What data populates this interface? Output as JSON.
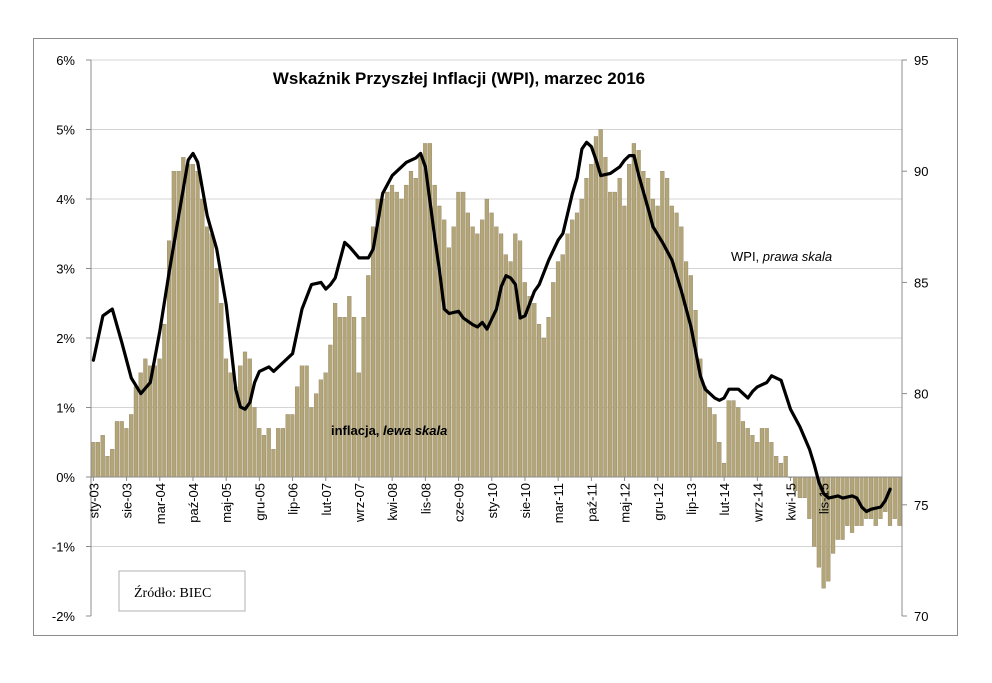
{
  "chart_data": {
    "type": "bar+line",
    "title": "Wskaźnik Przyszłej Inflacji (WPI), marzec 2016",
    "source": "Źródło: BIEC",
    "x_tick_labels": [
      "sty-03",
      "sie-03",
      "mar-04",
      "paź-04",
      "maj-05",
      "gru-05",
      "lip-06",
      "lut-07",
      "wrz-07",
      "kwi-08",
      "lis-08",
      "cze-09",
      "sty-10",
      "sie-10",
      "mar-11",
      "paź-11",
      "maj-12",
      "gru-12",
      "lip-13",
      "lut-14",
      "wrz-14",
      "kwi-15",
      "lis-15"
    ],
    "y_left": {
      "ticks": [
        "6%",
        "5%",
        "4%",
        "3%",
        "2%",
        "1%",
        "0%",
        "-1%",
        "-2%"
      ],
      "range": [
        -2,
        6
      ],
      "unit": "%"
    },
    "y_right": {
      "ticks": [
        "95",
        "90",
        "85",
        "80",
        "75",
        "70"
      ],
      "range": [
        70,
        95
      ]
    },
    "series": [
      {
        "name": "inflacja, lewa skala",
        "label_main": "inflacja, ",
        "label_italic": "lewa skala",
        "kind": "bar",
        "axis": "left",
        "color": "#b3a577",
        "values": [
          0.5,
          0.5,
          0.6,
          0.3,
          0.4,
          0.8,
          0.8,
          0.7,
          0.9,
          1.3,
          1.5,
          1.7,
          1.6,
          1.6,
          1.7,
          2.2,
          3.4,
          4.4,
          4.4,
          4.6,
          4.5,
          4.5,
          4.4,
          4.0,
          3.6,
          3.5,
          3.0,
          2.5,
          1.7,
          1.5,
          1.3,
          1.6,
          1.8,
          1.7,
          1.0,
          0.7,
          0.6,
          0.7,
          0.4,
          0.7,
          0.7,
          0.9,
          0.9,
          1.3,
          1.6,
          1.6,
          1.0,
          1.2,
          1.4,
          1.5,
          1.9,
          2.5,
          2.3,
          2.3,
          2.6,
          2.3,
          1.5,
          2.3,
          2.9,
          3.6,
          4.0,
          4.0,
          4.1,
          4.2,
          4.1,
          4.0,
          4.2,
          4.4,
          4.3,
          4.6,
          4.8,
          4.8,
          4.2,
          3.9,
          3.7,
          3.3,
          3.6,
          4.1,
          4.1,
          3.8,
          3.6,
          3.5,
          3.7,
          4.0,
          3.8,
          3.6,
          3.5,
          3.2,
          3.1,
          3.5,
          3.4,
          2.8,
          2.6,
          2.5,
          2.2,
          2.0,
          2.3,
          2.8,
          3.1,
          3.2,
          3.5,
          3.7,
          3.8,
          4.0,
          4.3,
          4.5,
          4.9,
          5.0,
          4.6,
          4.1,
          4.1,
          4.3,
          3.9,
          4.5,
          4.8,
          4.7,
          4.4,
          4.3,
          4.0,
          3.9,
          4.4,
          4.3,
          3.9,
          3.8,
          3.6,
          3.1,
          2.9,
          2.4,
          1.7,
          1.3,
          1.0,
          0.9,
          0.5,
          0.2,
          1.1,
          1.1,
          1.0,
          0.8,
          0.7,
          0.6,
          0.5,
          0.7,
          0.7,
          0.5,
          0.3,
          0.2,
          0.3,
          0.0,
          -0.2,
          -0.3,
          -0.3,
          -0.6,
          -1.0,
          -1.3,
          -1.6,
          -1.5,
          -1.1,
          -0.9,
          -0.9,
          -0.7,
          -0.8,
          -0.7,
          -0.7,
          -0.6,
          -0.6,
          -0.7,
          -0.6,
          -0.5,
          -0.7,
          -0.6,
          -0.7
        ]
      },
      {
        "name": "WPI, prawa skala",
        "label_main": "WPI, ",
        "label_italic": "prawa skala",
        "kind": "line",
        "axis": "right",
        "color": "#000000",
        "points": [
          [
            0,
            81.5
          ],
          [
            2,
            83.5
          ],
          [
            4,
            83.8
          ],
          [
            6,
            82.3
          ],
          [
            8,
            80.7
          ],
          [
            10,
            80.0
          ],
          [
            12,
            80.5
          ],
          [
            14,
            82.8
          ],
          [
            16,
            85.5
          ],
          [
            18,
            88.0
          ],
          [
            20,
            90.5
          ],
          [
            21,
            90.8
          ],
          [
            22,
            90.4
          ],
          [
            24,
            88.0
          ],
          [
            26,
            86.5
          ],
          [
            28,
            84.0
          ],
          [
            30,
            80.2
          ],
          [
            31,
            79.4
          ],
          [
            32,
            79.3
          ],
          [
            33,
            79.6
          ],
          [
            34,
            80.5
          ],
          [
            35,
            81.0
          ],
          [
            37,
            81.2
          ],
          [
            38,
            81.0
          ],
          [
            40,
            81.4
          ],
          [
            42,
            81.8
          ],
          [
            44,
            83.8
          ],
          [
            46,
            84.9
          ],
          [
            48,
            85.0
          ],
          [
            49,
            84.7
          ],
          [
            50,
            84.9
          ],
          [
            51,
            85.2
          ],
          [
            53,
            86.8
          ],
          [
            54,
            86.6
          ],
          [
            56,
            86.1
          ],
          [
            58,
            86.1
          ],
          [
            59,
            86.5
          ],
          [
            61,
            89.0
          ],
          [
            63,
            89.8
          ],
          [
            64,
            90.0
          ],
          [
            66,
            90.4
          ],
          [
            68,
            90.6
          ],
          [
            69,
            90.8
          ],
          [
            70,
            90.2
          ],
          [
            72,
            87.0
          ],
          [
            73,
            85.5
          ],
          [
            74,
            83.8
          ],
          [
            75,
            83.6
          ],
          [
            77,
            83.7
          ],
          [
            78,
            83.4
          ],
          [
            80,
            83.1
          ],
          [
            81,
            83.0
          ],
          [
            82,
            83.2
          ],
          [
            83,
            82.9
          ],
          [
            85,
            83.8
          ],
          [
            86,
            84.8
          ],
          [
            87,
            85.3
          ],
          [
            88,
            85.2
          ],
          [
            89,
            84.9
          ],
          [
            90,
            83.4
          ],
          [
            91,
            83.5
          ],
          [
            93,
            84.6
          ],
          [
            94,
            84.9
          ],
          [
            96,
            86.0
          ],
          [
            98,
            86.9
          ],
          [
            99,
            87.2
          ],
          [
            101,
            89.0
          ],
          [
            102,
            89.7
          ],
          [
            103,
            91.0
          ],
          [
            104,
            91.3
          ],
          [
            105,
            91.1
          ],
          [
            106,
            90.5
          ],
          [
            107,
            89.8
          ],
          [
            109,
            89.9
          ],
          [
            111,
            90.2
          ],
          [
            112,
            90.5
          ],
          [
            113,
            90.7
          ],
          [
            114,
            90.7
          ],
          [
            115,
            89.8
          ],
          [
            117,
            88.3
          ],
          [
            118,
            87.5
          ],
          [
            120,
            86.8
          ],
          [
            122,
            86.0
          ],
          [
            124,
            84.6
          ],
          [
            126,
            83.0
          ],
          [
            128,
            80.8
          ],
          [
            129,
            80.2
          ],
          [
            131,
            79.8
          ],
          [
            132,
            79.7
          ],
          [
            133,
            79.8
          ],
          [
            134,
            80.2
          ],
          [
            136,
            80.2
          ],
          [
            137,
            80.0
          ],
          [
            138,
            79.8
          ],
          [
            139,
            80.1
          ],
          [
            140,
            80.3
          ],
          [
            142,
            80.5
          ],
          [
            143,
            80.8
          ],
          [
            145,
            80.6
          ],
          [
            147,
            79.3
          ],
          [
            149,
            78.5
          ],
          [
            151,
            77.5
          ],
          [
            152,
            76.8
          ],
          [
            153,
            76.0
          ],
          [
            154,
            75.5
          ],
          [
            155,
            75.3
          ],
          [
            157,
            75.4
          ],
          [
            158,
            75.3
          ],
          [
            160,
            75.4
          ],
          [
            161,
            75.3
          ],
          [
            162,
            74.9
          ],
          [
            163,
            74.7
          ],
          [
            164,
            74.8
          ],
          [
            166,
            74.9
          ],
          [
            167,
            75.2
          ],
          [
            168,
            75.7
          ]
        ],
        "annotation": "WPI, prawa skala"
      }
    ],
    "grid": "horizontal",
    "legend": "inline annotations"
  }
}
